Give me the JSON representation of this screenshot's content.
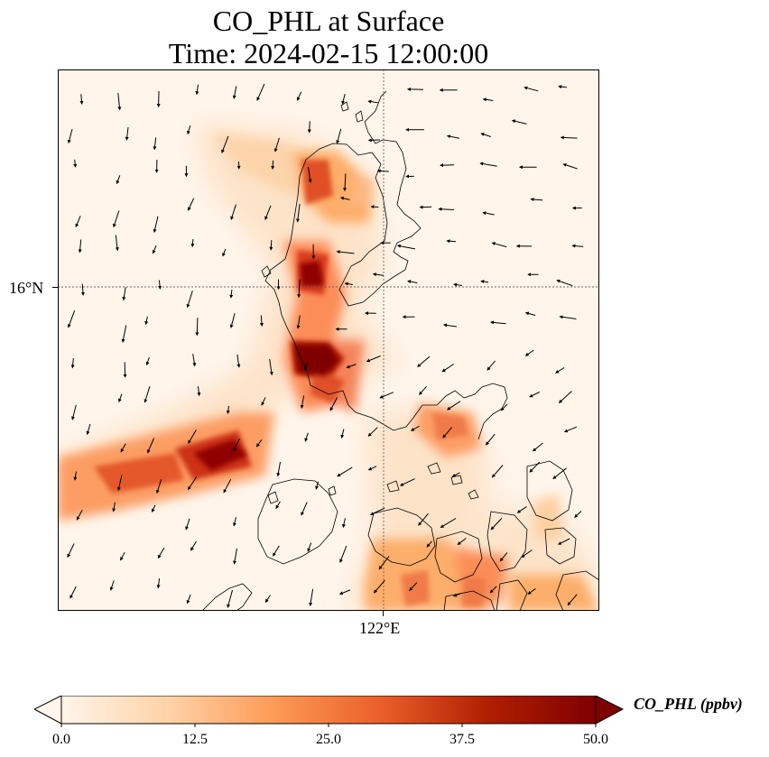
{
  "title": {
    "line1": "CO_PHL at Surface",
    "line2": "Time: 2024-02-15 12:00:00"
  },
  "axes": {
    "lat_tick_label": "16°N",
    "lon_tick_label": "122°E",
    "gridlines": "dotted"
  },
  "colorbar": {
    "label": "CO_PHL (ppbv)",
    "ticks": [
      "0.0",
      "12.5",
      "25.0",
      "37.5",
      "50.0"
    ],
    "min": 0,
    "max": 50,
    "colormap": [
      "#fff5eb",
      "#fdd3a7",
      "#fd9a55",
      "#e95e28",
      "#b01e02",
      "#7f0000"
    ],
    "extend": "both"
  },
  "map_colors": {
    "background": "#fff5eb",
    "coastline": "#000000",
    "wind_arrow": "#000000"
  }
}
